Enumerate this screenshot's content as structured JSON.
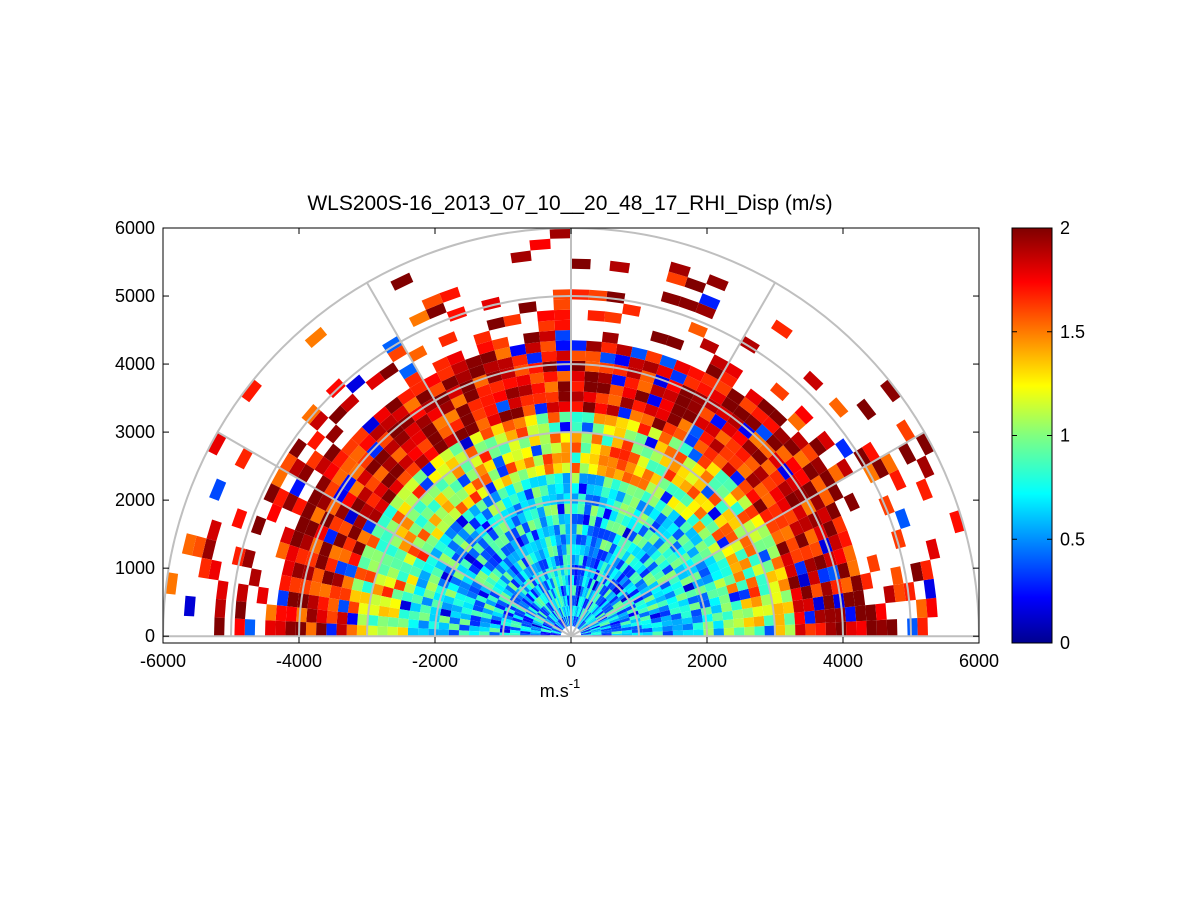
{
  "chart_data": {
    "type": "heatmap",
    "subtype": "polar-rhi",
    "title": "WLS200S-16_2013_07_10__20_48_17_RHI_Disp (m/s)",
    "xlabel": "m.s",
    "xlabel_superscript": "-1",
    "ylabel": "",
    "xlim": [
      -6000,
      6000
    ],
    "ylim": [
      -100,
      6000
    ],
    "xticks": [
      "-6000",
      "-4000",
      "-2000",
      "0",
      "2000",
      "4000",
      "6000"
    ],
    "xtick_values": [
      -6000,
      -4000,
      -2000,
      0,
      2000,
      4000,
      6000
    ],
    "yticks": [
      "0",
      "1000",
      "2000",
      "3000",
      "4000",
      "5000",
      "6000"
    ],
    "ytick_values": [
      0,
      1000,
      2000,
      3000,
      4000,
      5000,
      6000
    ],
    "colorbar": {
      "colormap": "jet",
      "range": [
        0,
        2
      ],
      "ticks": [
        "0",
        "0.5",
        "1",
        "1.5",
        "2"
      ],
      "tick_values": [
        0,
        0.5,
        1,
        1.5,
        2
      ]
    },
    "polar_grid": {
      "ring_ranges_m": [
        1000,
        2000,
        3000,
        4000,
        5000,
        6000
      ],
      "spoke_angles_deg": [
        0,
        30,
        60,
        90,
        120,
        150,
        180
      ],
      "color": "#bfbfbf"
    },
    "scan": {
      "elevation_range_deg": [
        0,
        180
      ],
      "range_gates_m": [
        0,
        6000
      ],
      "value_units": "m/s"
    },
    "colors": {
      "jet_dark_red": "#7f0000",
      "jet_red": "#ff0000",
      "jet_orange": "#ff8000",
      "jet_yellow": "#ffff00",
      "jet_green": "#a0ff60",
      "jet_cyan": "#00ffff",
      "jet_blue": "#0080ff",
      "jet_dark_blue": "#00008f"
    }
  }
}
